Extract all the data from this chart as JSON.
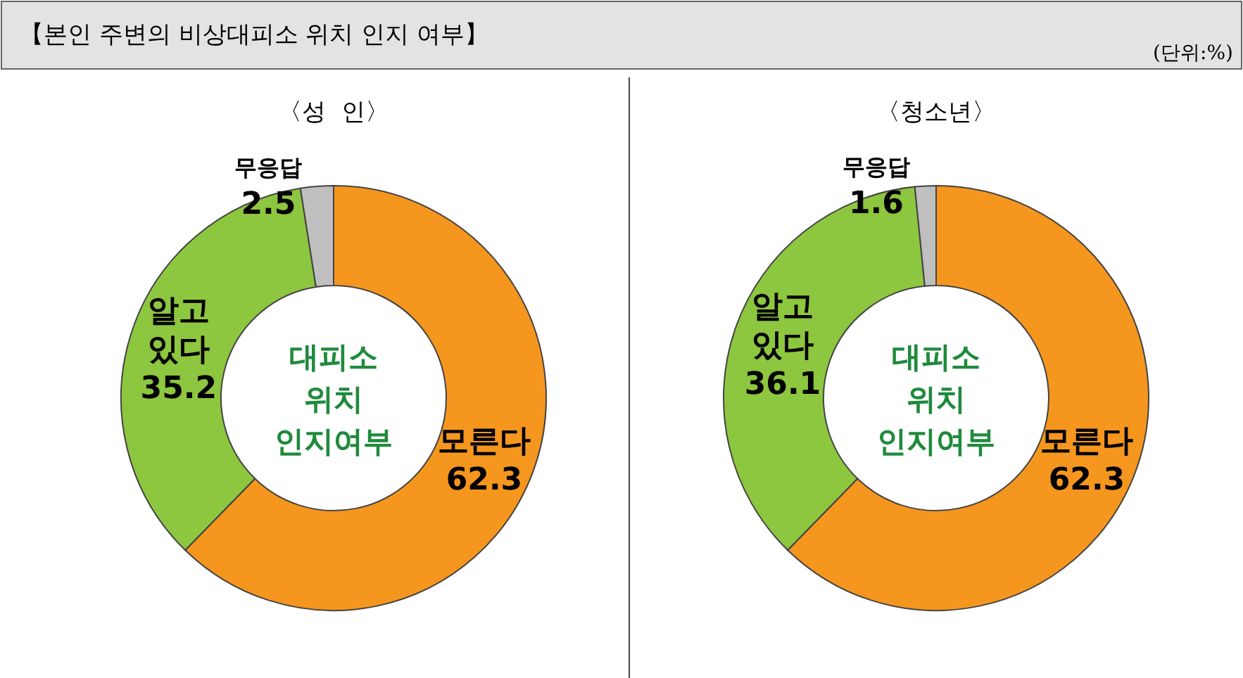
{
  "chart_data": [
    {
      "type": "other",
      "title": "【본인 주변의 비상대피소 위치 인지 여부】",
      "annotations": [
        "(단위:%)"
      ]
    },
    {
      "type": "donut",
      "title": "〈성  인〉",
      "categories": [
        "모른다",
        "알고 있다",
        "무응답"
      ],
      "values": [
        62.3,
        35.2,
        2.5
      ],
      "colors": [
        "#f5961e",
        "#8dc63f",
        "#bfbfbf"
      ],
      "data_labels": true,
      "annotations": [
        "대피소 위치 인지여부"
      ]
    },
    {
      "type": "donut",
      "title": "〈청소년〉",
      "categories": [
        "모른다",
        "알고 있다",
        "무응답"
      ],
      "values": [
        62.3,
        36.1,
        1.6
      ],
      "colors": [
        "#f5961e",
        "#8dc63f",
        "#bfbfbf"
      ],
      "data_labels": true,
      "annotations": [
        "대피소 위치 인지여부"
      ]
    }
  ]
}
